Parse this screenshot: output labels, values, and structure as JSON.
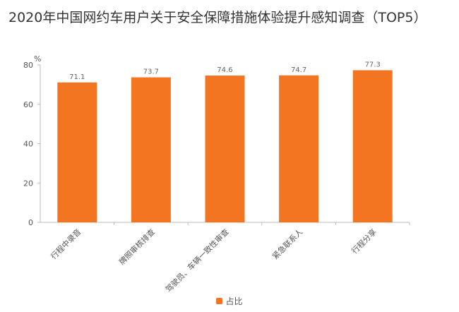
{
  "title": "2020年中国网约车用户关于安全保障措施体验提升感知调查（TOP5）",
  "chart_data": {
    "type": "bar",
    "ylabel": "%",
    "ylim": [
      0,
      80
    ],
    "yticks": [
      0,
      20,
      40,
      60,
      80
    ],
    "categories": [
      "行程中录音",
      "牌照审核排查",
      "驾驶员、车辆一致性审查",
      "紧急联系人",
      "行程分享"
    ],
    "series": [
      {
        "name": "占比",
        "values": [
          71.1,
          73.7,
          74.6,
          74.7,
          77.3
        ]
      }
    ],
    "grid": false,
    "legend": "bottom-center",
    "color": "#F47521"
  }
}
